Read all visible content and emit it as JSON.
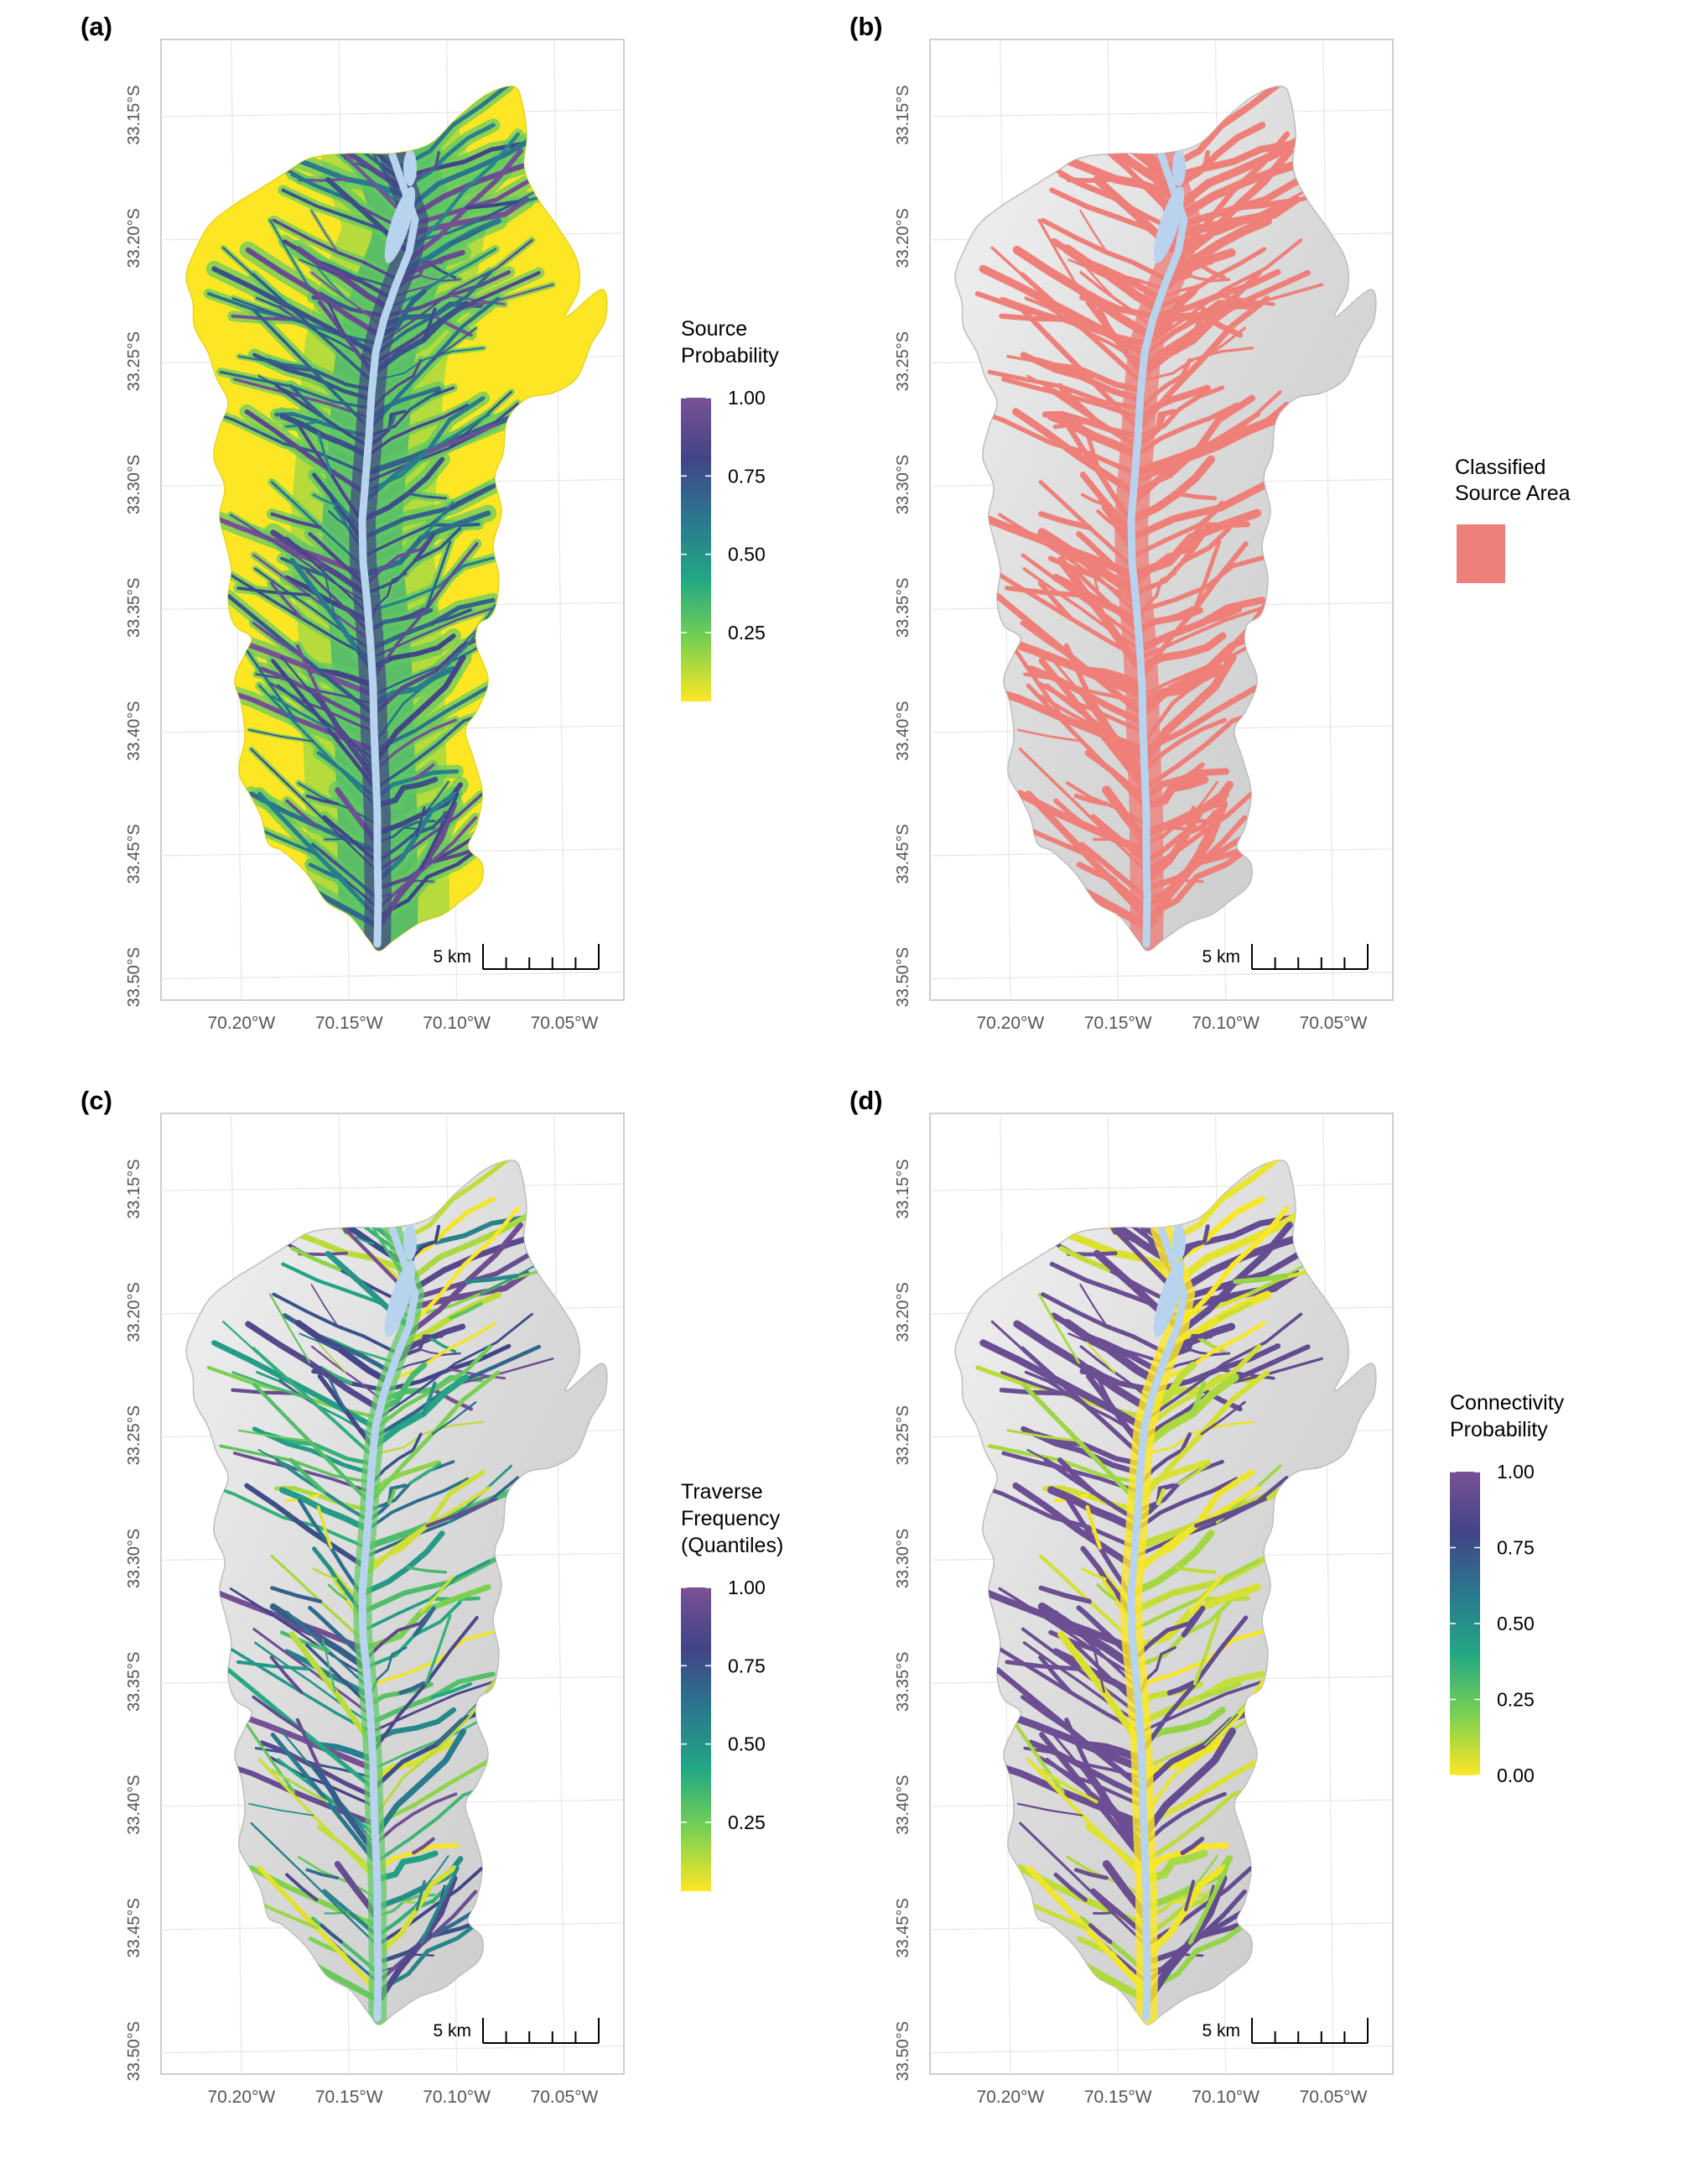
{
  "panels": [
    {
      "tag": "(a)",
      "layer": "source-probability",
      "legend": {
        "type": "continuous",
        "title_lines": [
          "Source",
          "Probability"
        ],
        "ticks": [
          "1.00",
          "0.75",
          "0.50",
          "0.25"
        ],
        "tick_values": [
          1.0,
          0.75,
          0.5,
          0.25
        ],
        "range": [
          0.03,
          1.0
        ],
        "colors": [
          "#fde725",
          "#7ad151",
          "#22a884",
          "#2a788e",
          "#414487",
          "#7a5195"
        ]
      }
    },
    {
      "tag": "(b)",
      "layer": "classified-source",
      "legend": {
        "type": "category",
        "title_lines": [
          "Classified",
          "Source Area"
        ],
        "color": "#ee8079"
      }
    },
    {
      "tag": "(c)",
      "layer": "traverse-frequency",
      "legend": {
        "type": "continuous",
        "title_lines": [
          "Traverse",
          "Frequency",
          "(Quantiles)"
        ],
        "ticks": [
          "1.00",
          "0.75",
          "0.50",
          "0.25"
        ],
        "tick_values": [
          1.0,
          0.75,
          0.5,
          0.25
        ],
        "range": [
          0.03,
          1.0
        ],
        "colors": [
          "#fde725",
          "#7ad151",
          "#22a884",
          "#2a788e",
          "#414487",
          "#7a5195"
        ]
      }
    },
    {
      "tag": "(d)",
      "layer": "connectivity-probability",
      "legend": {
        "type": "continuous",
        "title_lines": [
          "Connectivity",
          "Probability"
        ],
        "ticks": [
          "1.00",
          "0.75",
          "0.50",
          "0.25",
          "0.00"
        ],
        "tick_values": [
          1.0,
          0.75,
          0.5,
          0.25,
          0.0
        ],
        "range": [
          0.0,
          1.0
        ],
        "colors": [
          "#fde725",
          "#7ad151",
          "#22a884",
          "#2a788e",
          "#414487",
          "#7a5195"
        ]
      }
    }
  ],
  "axes": {
    "lat_labels": [
      "33.15°S",
      "33.20°S",
      "33.25°S",
      "33.30°S",
      "33.35°S",
      "33.40°S",
      "33.45°S",
      "33.50°S"
    ],
    "lat_values": [
      -33.15,
      -33.2,
      -33.25,
      -33.3,
      -33.35,
      -33.4,
      -33.45,
      -33.5
    ],
    "lon_labels": [
      "70.20°W",
      "70.15°W",
      "70.10°W",
      "70.05°W"
    ],
    "lon_values": [
      -70.2,
      -70.15,
      -70.1,
      -70.05
    ],
    "lat_range": [
      -33.51,
      -33.12
    ],
    "lon_range": [
      -70.235,
      -70.02
    ]
  },
  "scalebar": {
    "label": "5 km"
  },
  "colors": {
    "river": "#b7d3ee",
    "hillshade": "#d9d9d9",
    "grid": "#e6e6e6",
    "frame": "#bdbdbd",
    "axis_text": "#555555"
  }
}
